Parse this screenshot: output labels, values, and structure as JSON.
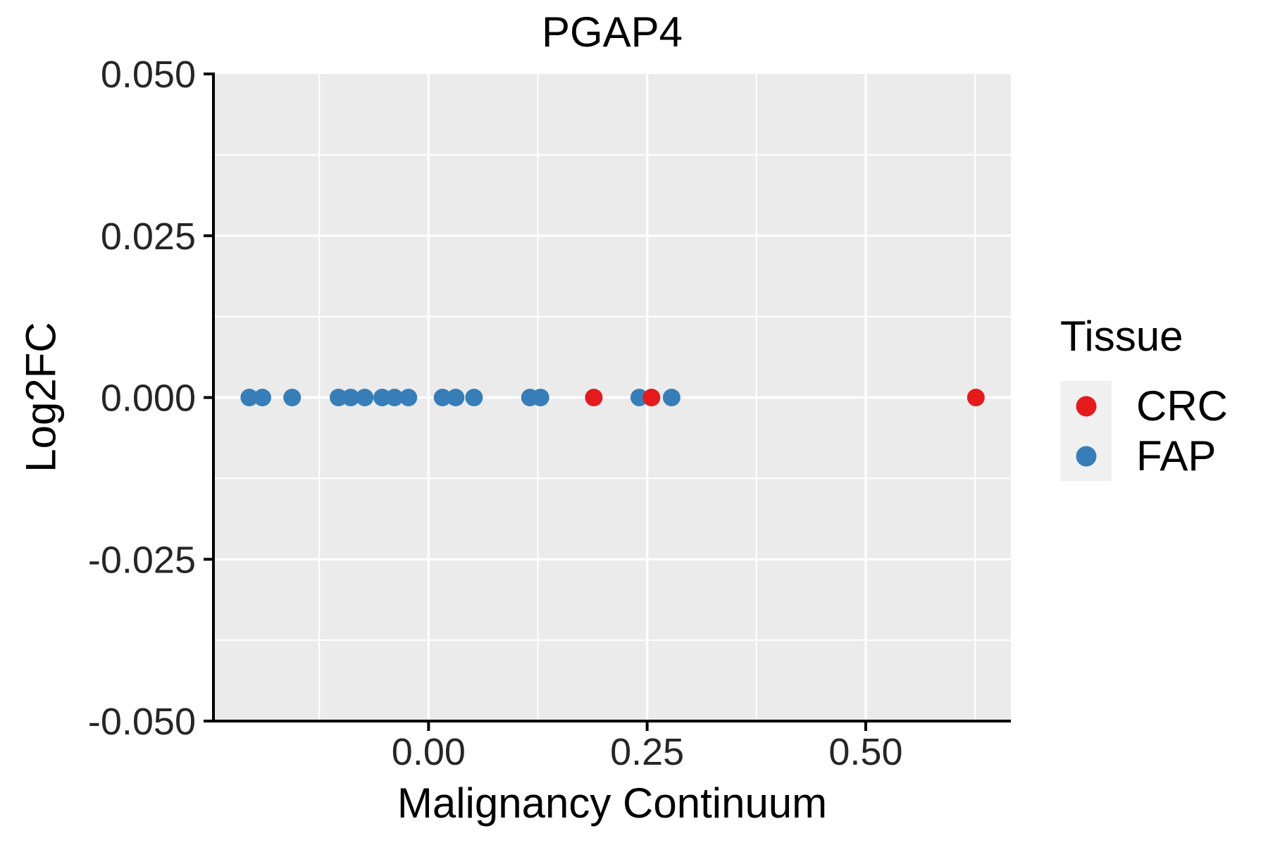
{
  "chart_data": {
    "type": "scatter",
    "title": "PGAP4",
    "xlabel": "Malignancy Continuum",
    "ylabel": "Log2FC",
    "legend_title": "Tissue",
    "legend_position": "right",
    "panel_background": "#EBEBEB",
    "grid_color": "#FFFFFF",
    "axis_color": "#000000",
    "tick_label_color": "#262626",
    "x_range": [
      -0.246,
      0.666
    ],
    "y_range": [
      -0.05,
      0.05
    ],
    "x_ticks": [
      {
        "value": 0.0,
        "label": "0.00"
      },
      {
        "value": 0.25,
        "label": "0.25"
      },
      {
        "value": 0.5,
        "label": "0.50"
      }
    ],
    "y_ticks": [
      {
        "value": 0.05,
        "label": "0.050"
      },
      {
        "value": 0.025,
        "label": "0.025"
      },
      {
        "value": 0.0,
        "label": "0.000"
      },
      {
        "value": -0.025,
        "label": "-0.025"
      },
      {
        "value": -0.05,
        "label": "-0.050"
      }
    ],
    "x_minor_ticks": [
      -0.125,
      0.125,
      0.375,
      0.625
    ],
    "y_minor_ticks": [
      0.0375,
      0.0125,
      -0.0125,
      -0.0375
    ],
    "grid": true,
    "series": [
      {
        "name": "CRC",
        "color": "#E41A1C",
        "points": [
          {
            "x": 0.189,
            "y": 0.0
          },
          {
            "x": 0.255,
            "y": 0.0
          },
          {
            "x": 0.626,
            "y": 0.0
          }
        ]
      },
      {
        "name": "FAP",
        "color": "#377EB8",
        "points": [
          {
            "x": -0.205,
            "y": 0.0
          },
          {
            "x": -0.19,
            "y": 0.0
          },
          {
            "x": -0.156,
            "y": 0.0
          },
          {
            "x": -0.103,
            "y": 0.0
          },
          {
            "x": -0.089,
            "y": 0.0
          },
          {
            "x": -0.073,
            "y": 0.0
          },
          {
            "x": -0.053,
            "y": 0.0
          },
          {
            "x": -0.039,
            "y": 0.0
          },
          {
            "x": -0.023,
            "y": 0.0
          },
          {
            "x": 0.016,
            "y": 0.0
          },
          {
            "x": 0.031,
            "y": 0.0
          },
          {
            "x": 0.052,
            "y": 0.0
          },
          {
            "x": 0.116,
            "y": 0.0
          },
          {
            "x": 0.128,
            "y": 0.0
          },
          {
            "x": 0.241,
            "y": 0.0
          },
          {
            "x": 0.278,
            "y": 0.0
          }
        ]
      }
    ]
  }
}
